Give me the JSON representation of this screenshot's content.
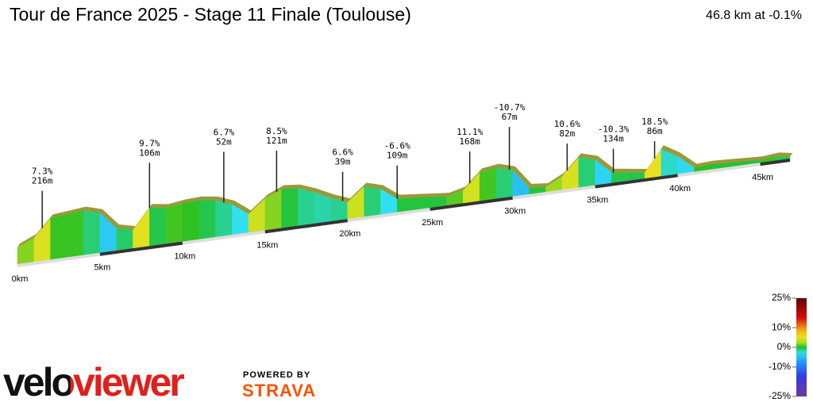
{
  "header": {
    "title": "Tour de France 2025 - Stage 11 Finale (Toulouse)",
    "summary": "46.8 km at -0.1%"
  },
  "chart_data": {
    "type": "profile",
    "x": [
      0,
      1,
      2,
      3,
      4,
      5,
      6,
      7,
      8,
      9,
      10,
      11,
      12,
      13,
      14,
      15,
      16,
      17,
      18,
      19,
      20,
      21,
      22,
      23,
      24,
      25,
      26,
      27,
      28,
      29,
      30,
      31,
      32,
      33,
      34,
      35,
      36,
      37,
      38,
      39,
      40,
      41,
      42,
      43,
      44,
      45,
      46,
      46.8
    ],
    "values": [
      176,
      194,
      238,
      242,
      246,
      234,
      190,
      180,
      230,
      224,
      230,
      232,
      226,
      210,
      180,
      214,
      232,
      228,
      212,
      192,
      176,
      210,
      198,
      168,
      164,
      160,
      156,
      166,
      206,
      212,
      200,
      150,
      146,
      168,
      210,
      198,
      160,
      154,
      148,
      202,
      178,
      144,
      146,
      144,
      142,
      140,
      144,
      138
    ],
    "xlim": [
      0,
      46.8
    ],
    "xticks": [
      {
        "value": 0,
        "label": "0km"
      },
      {
        "value": 5,
        "label": "5km"
      },
      {
        "value": 10,
        "label": "10km"
      },
      {
        "value": 15,
        "label": "15km"
      },
      {
        "value": 20,
        "label": "20km"
      },
      {
        "value": 25,
        "label": "25km"
      },
      {
        "value": 30,
        "label": "30km"
      },
      {
        "value": 35,
        "label": "35km"
      },
      {
        "value": 40,
        "label": "40km"
      },
      {
        "value": 45,
        "label": "45km"
      }
    ],
    "annotations": [
      {
        "x": 1.5,
        "gradient": "7.3%",
        "length": "216m"
      },
      {
        "x": 8,
        "gradient": "9.7%",
        "length": "106m"
      },
      {
        "x": 12.5,
        "gradient": "6.7%",
        "length": "52m"
      },
      {
        "x": 15.7,
        "gradient": "8.5%",
        "length": "121m"
      },
      {
        "x": 19.7,
        "gradient": "6.6%",
        "length": "39m"
      },
      {
        "x": 23,
        "gradient": "-6.6%",
        "length": "109m"
      },
      {
        "x": 27.4,
        "gradient": "11.1%",
        "length": "168m"
      },
      {
        "x": 29.8,
        "gradient": "-10.7%",
        "length": "67m"
      },
      {
        "x": 33.3,
        "gradient": "10.6%",
        "length": "82m"
      },
      {
        "x": 36.1,
        "gradient": "-10.3%",
        "length": "134m"
      },
      {
        "x": 38.6,
        "gradient": "18.5%",
        "length": "86m"
      }
    ],
    "gradient_scale": {
      "lim": [
        -25,
        25
      ],
      "ticks": [
        {
          "value": 25,
          "label": "25%"
        },
        {
          "value": 10,
          "label": "10%"
        },
        {
          "value": 0,
          "label": "0%"
        },
        {
          "value": -10,
          "label": "-10%"
        },
        {
          "value": -25,
          "label": "-25%"
        }
      ]
    }
  },
  "branding": {
    "logo": "veloviewer",
    "powered_by": "POWERED BY",
    "partner": "STRAVA"
  }
}
